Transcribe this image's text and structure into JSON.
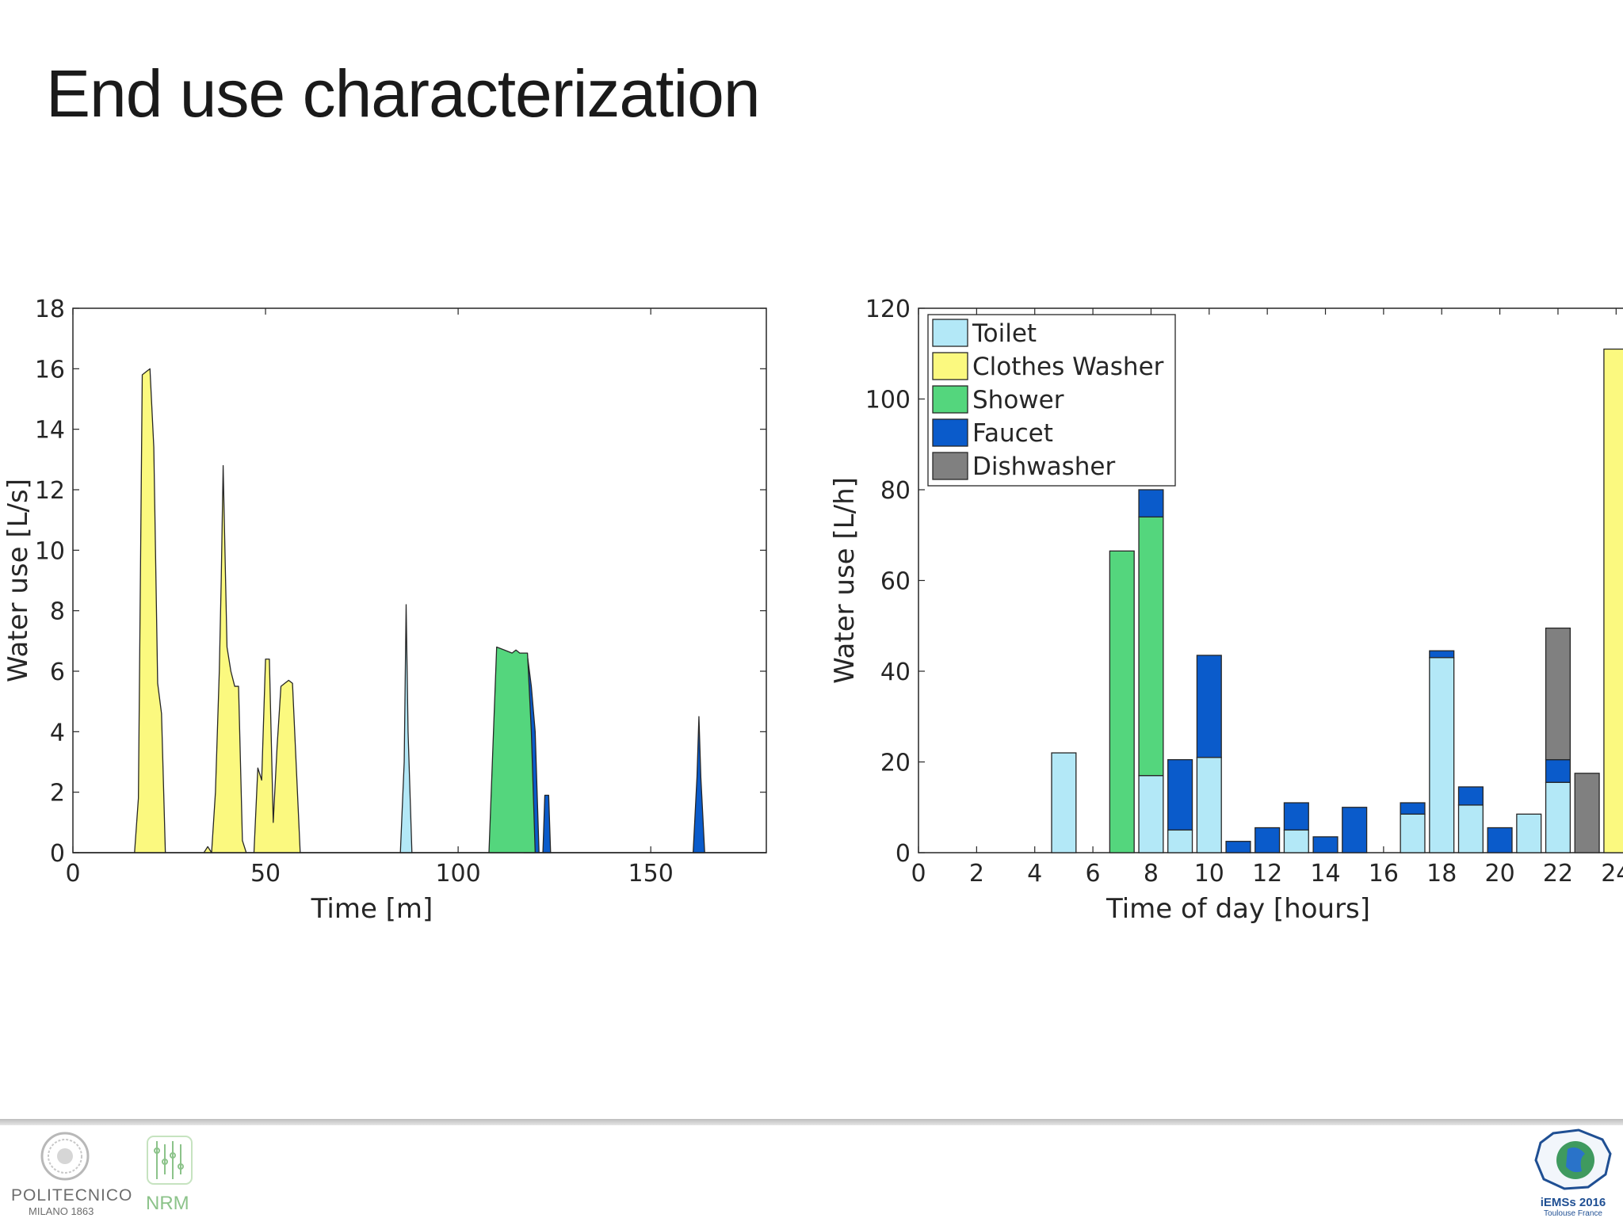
{
  "slide": {
    "title": "End use characterization"
  },
  "chart_data": [
    {
      "type": "area",
      "xlabel": "Time [m]",
      "ylabel": "Water use [L/s]",
      "xlim": [
        0,
        180
      ],
      "ylim": [
        0,
        18
      ],
      "xticks": [
        0,
        50,
        100,
        150
      ],
      "yticks": [
        0,
        2,
        4,
        6,
        8,
        10,
        12,
        14,
        16,
        18
      ],
      "grid": false,
      "colors": {
        "Toilet": "#b3e8f7",
        "Clothes Washer": "#fbf97f",
        "Shower": "#54d67d",
        "Faucet": "#0a5bcb"
      },
      "series": [
        {
          "use": "Clothes Washer",
          "points": [
            [
              16,
              0
            ],
            [
              17,
              1.8
            ],
            [
              18,
              15.8
            ],
            [
              19,
              15.9
            ],
            [
              20,
              16
            ],
            [
              21,
              13.4
            ],
            [
              22,
              5.6
            ],
            [
              23,
              4.6
            ],
            [
              24,
              0
            ]
          ]
        },
        {
          "use": "Clothes Washer",
          "points": [
            [
              34,
              0
            ],
            [
              35,
              0.2
            ],
            [
              36,
              0
            ],
            [
              37,
              2
            ],
            [
              38,
              6
            ],
            [
              38.5,
              9
            ],
            [
              39,
              12.8
            ],
            [
              40,
              6.8
            ],
            [
              41,
              6
            ],
            [
              42,
              5.5
            ],
            [
              43,
              5.5
            ],
            [
              44,
              0.4
            ],
            [
              45,
              0
            ]
          ]
        },
        {
          "use": "Clothes Washer",
          "points": [
            [
              47,
              0
            ],
            [
              48,
              2.8
            ],
            [
              49,
              2.4
            ],
            [
              50,
              6.4
            ],
            [
              51,
              6.4
            ],
            [
              52,
              1
            ],
            [
              53,
              3.5
            ],
            [
              54,
              5.5
            ],
            [
              55,
              5.6
            ],
            [
              56,
              5.7
            ],
            [
              57,
              5.6
            ],
            [
              59,
              0
            ]
          ]
        },
        {
          "use": "Toilet",
          "points": [
            [
              85,
              0
            ],
            [
              86,
              3
            ],
            [
              86.5,
              8.2
            ],
            [
              87,
              4
            ],
            [
              88,
              0
            ]
          ]
        },
        {
          "use": "Faucet",
          "points": [
            [
              117,
              0
            ],
            [
              118,
              6.5
            ],
            [
              119,
              5.5
            ],
            [
              120,
              4
            ],
            [
              121,
              0
            ]
          ]
        },
        {
          "use": "Shower",
          "points": [
            [
              108,
              0
            ],
            [
              110,
              6.8
            ],
            [
              112,
              6.7
            ],
            [
              114,
              6.6
            ],
            [
              115,
              6.7
            ],
            [
              116,
              6.6
            ],
            [
              118,
              6.6
            ],
            [
              119,
              4
            ],
            [
              120,
              0
            ]
          ]
        },
        {
          "use": "Faucet",
          "points": [
            [
              122,
              0
            ],
            [
              122.5,
              1.9
            ],
            [
              123.5,
              1.9
            ],
            [
              124,
              0
            ]
          ]
        },
        {
          "use": "Faucet",
          "points": [
            [
              161,
              0
            ],
            [
              162,
              2.5
            ],
            [
              162.5,
              4.5
            ],
            [
              163,
              2.5
            ],
            [
              164,
              0
            ]
          ]
        }
      ]
    },
    {
      "type": "bar",
      "stacked": true,
      "xlabel": "Time of day [hours]",
      "ylabel": "Water use [L/h]",
      "xlim": [
        0,
        25
      ],
      "ylim": [
        0,
        120
      ],
      "xticks": [
        0,
        2,
        4,
        6,
        8,
        10,
        12,
        14,
        16,
        18,
        20,
        22,
        24
      ],
      "yticks": [
        0,
        20,
        40,
        60,
        80,
        100,
        120
      ],
      "grid": false,
      "legend_position": "top-left",
      "categories": [
        1,
        2,
        3,
        4,
        5,
        6,
        7,
        8,
        9,
        10,
        11,
        12,
        13,
        14,
        15,
        16,
        17,
        18,
        19,
        20,
        21,
        22,
        23,
        24
      ],
      "series": [
        {
          "name": "Toilet",
          "color": "#b3e8f7",
          "values": [
            0,
            0,
            0,
            0,
            22,
            0,
            0,
            17,
            5,
            21,
            0,
            0,
            5,
            0,
            0,
            0,
            8.5,
            43,
            10.5,
            0,
            8.5,
            15.5,
            0,
            0
          ]
        },
        {
          "name": "Clothes Washer",
          "color": "#fbf97f",
          "values": [
            0,
            0,
            0,
            0,
            0,
            0,
            0,
            0,
            0,
            0,
            0,
            0,
            0,
            0,
            0,
            0,
            0,
            0,
            0,
            0,
            0,
            0,
            0,
            111
          ]
        },
        {
          "name": "Shower",
          "color": "#54d67d",
          "values": [
            0,
            0,
            0,
            0,
            0,
            0,
            66.5,
            57,
            0,
            0,
            0,
            0,
            0,
            0,
            0,
            0,
            0,
            0,
            0,
            0,
            0,
            0,
            0,
            0
          ]
        },
        {
          "name": "Faucet",
          "color": "#0a5bcb",
          "values": [
            0,
            0,
            0,
            0,
            0,
            0,
            0,
            6,
            15.5,
            22.5,
            2.5,
            5.5,
            6,
            3.5,
            10,
            0,
            2.5,
            1.5,
            4,
            5.5,
            0,
            5,
            0,
            0
          ]
        },
        {
          "name": "Dishwasher",
          "color": "#808080",
          "values": [
            0,
            0,
            0,
            0,
            0,
            0,
            0,
            0,
            0,
            0,
            0,
            0,
            0,
            0,
            0,
            0,
            0,
            0,
            0,
            0,
            0,
            29,
            17.5,
            0
          ]
        }
      ]
    }
  ],
  "footer": {
    "left_logo_text": "POLITECNICO",
    "left_logo_subtext": "MILANO 1863",
    "middle_logo_text": "NRM",
    "right_logo_text": "iEMSs 2016",
    "right_logo_subtext": "Toulouse France"
  }
}
